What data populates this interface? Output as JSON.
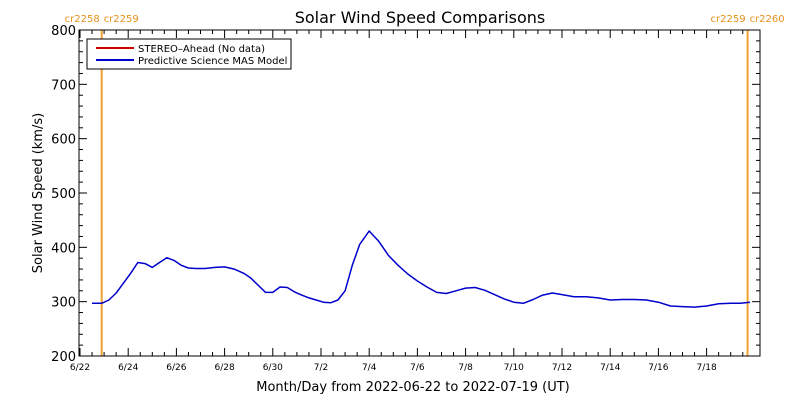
{
  "chart_data": {
    "type": "line",
    "title": "Solar Wind Speed Comparisons",
    "xlabel": "Month/Day from 2022-06-22 to 2022-07-19 (UT)",
    "ylabel": "Solar Wind Speed (km/s)",
    "ylim": [
      200,
      800
    ],
    "xlim_days": [
      0,
      27.8
    ],
    "y_ticks": [
      200,
      300,
      400,
      500,
      600,
      700,
      800
    ],
    "x_ticks": [
      {
        "label": "6/22",
        "day": 0
      },
      {
        "label": "6/24",
        "day": 2
      },
      {
        "label": "6/26",
        "day": 4
      },
      {
        "label": "6/28",
        "day": 6
      },
      {
        "label": "6/30",
        "day": 8
      },
      {
        "label": "7/2",
        "day": 10
      },
      {
        "label": "7/4",
        "day": 12
      },
      {
        "label": "7/6",
        "day": 14
      },
      {
        "label": "7/8",
        "day": 16
      },
      {
        "label": "7/10",
        "day": 18
      },
      {
        "label": "7/12",
        "day": 20
      },
      {
        "label": "7/14",
        "day": 22
      },
      {
        "label": "7/16",
        "day": 24
      },
      {
        "label": "7/18",
        "day": 26
      }
    ],
    "rotations": [
      {
        "day": 0.9,
        "left": "cr2258",
        "right": "cr2259"
      },
      {
        "day": 27.7,
        "left": "cr2259",
        "right": "cr2260"
      }
    ],
    "legend": {
      "placement": "top-left",
      "entries": [
        {
          "label": "STEREO–Ahead (No data)",
          "color": "#cc0000"
        },
        {
          "label": "Predictive Science MAS Model",
          "color": "#0000cc"
        }
      ]
    },
    "series": [
      {
        "name": "Predictive Science MAS Model",
        "color": "#0000cc",
        "x": [
          0.5,
          0.9,
          1.2,
          1.5,
          1.8,
          2.1,
          2.4,
          2.7,
          3.0,
          3.3,
          3.6,
          3.9,
          4.2,
          4.5,
          4.8,
          5.2,
          5.6,
          6.0,
          6.4,
          6.8,
          7.1,
          7.4,
          7.7,
          8.0,
          8.3,
          8.6,
          8.9,
          9.2,
          9.5,
          9.8,
          10.1,
          10.4,
          10.7,
          11.0,
          11.3,
          11.6,
          12.0,
          12.4,
          12.8,
          13.2,
          13.6,
          14.0,
          14.4,
          14.8,
          15.2,
          15.6,
          16.0,
          16.4,
          16.8,
          17.2,
          17.6,
          18.0,
          18.4,
          18.8,
          19.2,
          19.6,
          20.0,
          20.5,
          21.0,
          21.5,
          22.0,
          22.5,
          23.0,
          23.5,
          24.0,
          24.5,
          25.0,
          25.5,
          26.0,
          26.5,
          27.0,
          27.4,
          27.8
        ],
        "values": [
          297,
          297,
          303,
          316,
          334,
          352,
          372,
          370,
          363,
          372,
          381,
          376,
          367,
          362,
          361,
          361,
          363,
          364,
          360,
          352,
          343,
          330,
          317,
          317,
          327,
          326,
          318,
          312,
          307,
          303,
          299,
          298,
          303,
          320,
          367,
          405,
          430,
          411,
          385,
          367,
          351,
          338,
          327,
          317,
          315,
          320,
          325,
          326,
          321,
          313,
          305,
          299,
          297,
          304,
          312,
          316,
          313,
          309,
          309,
          307,
          303,
          304,
          304,
          303,
          299,
          292,
          291,
          290,
          292,
          296,
          297,
          297,
          299
        ]
      }
    ]
  }
}
